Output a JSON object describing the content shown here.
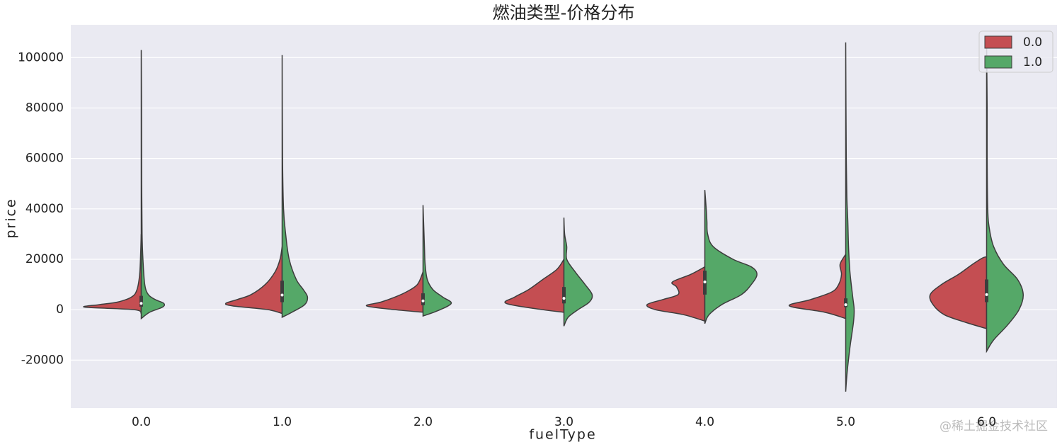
{
  "chart_data": {
    "type": "violin",
    "title": "燃油类型-价格分布",
    "xlabel": "fuelType",
    "ylabel": "price",
    "watermark": "@稀土掘金技术社区",
    "categories": [
      "0.0",
      "1.0",
      "2.0",
      "3.0",
      "4.0",
      "5.0",
      "6.0"
    ],
    "ylim": [
      -39000,
      113000
    ],
    "yticks": [
      -20000,
      0,
      20000,
      40000,
      60000,
      80000,
      100000
    ],
    "grid": true,
    "legend": "upper right",
    "inner": [
      [
        1200,
        2500,
        5500
      ],
      [
        3000,
        5800,
        11500
      ],
      [
        1800,
        3500,
        6500
      ],
      [
        2500,
        4500,
        9000
      ],
      [
        6000,
        11000,
        15500
      ],
      [
        1000,
        2000,
        4500
      ],
      [
        3000,
        6000,
        12000
      ]
    ],
    "series": [
      {
        "name": "0.0",
        "color": "#c44e52",
        "violins": [
          {
            "y": [
              -1500,
              0,
              1000,
              2000,
              3000,
              5000,
              8000,
              15000,
              30000
            ],
            "width": [
              0,
              0.05,
              0.4,
              0.3,
              0.17,
              0.07,
              0.03,
              0.01,
              0
            ]
          },
          {
            "y": [
              -1500,
              0,
              1500,
              2500,
              4000,
              6000,
              10000,
              15000,
              20000,
              25000
            ],
            "width": [
              0,
              0.1,
              0.35,
              0.4,
              0.32,
              0.22,
              0.12,
              0.05,
              0.015,
              0
            ]
          },
          {
            "y": [
              -1000,
              0,
              1500,
              3000,
              5000,
              7000,
              10000,
              15000
            ],
            "width": [
              0,
              0.2,
              0.4,
              0.3,
              0.2,
              0.12,
              0.04,
              0
            ]
          },
          {
            "y": [
              -1000,
              0,
              2500,
              5000,
              8000,
              12000,
              16000,
              20000
            ],
            "width": [
              0,
              0.15,
              0.41,
              0.35,
              0.25,
              0.15,
              0.05,
              0
            ]
          },
          {
            "y": [
              -4500,
              -2000,
              0,
              2000,
              4000,
              6000,
              9000,
              11000,
              14000,
              17000
            ],
            "width": [
              0,
              0.15,
              0.35,
              0.41,
              0.3,
              0.19,
              0.2,
              0.23,
              0.1,
              0
            ]
          },
          {
            "y": [
              -3500,
              -1000,
              1500,
              4000,
              7000,
              10000,
              14000,
              18000,
              22000
            ],
            "width": [
              0,
              0.15,
              0.4,
              0.25,
              0.1,
              0.05,
              0.03,
              0.04,
              0
            ]
          },
          {
            "y": [
              -7500,
              -5000,
              -2000,
              2000,
              6000,
              10000,
              14000,
              18000,
              20500,
              21000
            ],
            "width": [
              0,
              0.15,
              0.3,
              0.38,
              0.4,
              0.32,
              0.2,
              0.1,
              0.03,
              0
            ]
          }
        ]
      },
      {
        "name": "1.0",
        "color": "#55a868",
        "violins": [
          {
            "y": [
              -3500,
              -1000,
              1000,
              2500,
              4000,
              6000,
              10000,
              20000,
              30000,
              50000,
              80000,
              103000
            ],
            "width": [
              0,
              0.06,
              0.15,
              0.16,
              0.1,
              0.05,
              0.025,
              0.012,
              0.006,
              0.003,
              0.002,
              0
            ]
          },
          {
            "y": [
              -3000,
              -1000,
              2000,
              5000,
              8000,
              12000,
              20000,
              30000,
              40000,
              60000,
              101000
            ],
            "width": [
              0,
              0.07,
              0.16,
              0.18,
              0.15,
              0.1,
              0.05,
              0.025,
              0.01,
              0.003,
              0
            ]
          },
          {
            "y": [
              -2500,
              -500,
              2500,
              5000,
              8000,
              12000,
              18000,
              25000,
              41500
            ],
            "width": [
              0,
              0.1,
              0.2,
              0.14,
              0.07,
              0.03,
              0.015,
              0.01,
              0
            ]
          },
          {
            "y": [
              -6500,
              -3000,
              0,
              3000,
              6000,
              10000,
              15000,
              20000,
              25000,
              30000,
              36500
            ],
            "width": [
              0,
              0.03,
              0.1,
              0.18,
              0.2,
              0.15,
              0.08,
              0.02,
              0.02,
              0.005,
              0
            ]
          },
          {
            "y": [
              -5500,
              -2000,
              2000,
              6000,
              10000,
              14000,
              17000,
              20000,
              25000,
              30000,
              35000,
              40000,
              47500
            ],
            "width": [
              0,
              0.03,
              0.12,
              0.26,
              0.33,
              0.37,
              0.33,
              0.2,
              0.06,
              0.02,
              0.015,
              0.01,
              0
            ]
          },
          {
            "y": [
              -32500,
              -25000,
              -15000,
              -5000,
              0,
              5000,
              15000,
              25000,
              35000,
              45000,
              60000,
              80000,
              106000
            ],
            "width": [
              0,
              0.01,
              0.03,
              0.055,
              0.06,
              0.05,
              0.03,
              0.02,
              0.015,
              0.008,
              0.004,
              0.002,
              0
            ]
          },
          {
            "y": [
              -16500,
              -12000,
              -6000,
              0,
              6000,
              12000,
              18000,
              25000,
              32000,
              40000,
              60000,
              80000,
              105000
            ],
            "width": [
              0,
              0.05,
              0.15,
              0.23,
              0.26,
              0.22,
              0.12,
              0.05,
              0.02,
              0.008,
              0.004,
              0.004,
              0
            ]
          }
        ]
      }
    ]
  }
}
